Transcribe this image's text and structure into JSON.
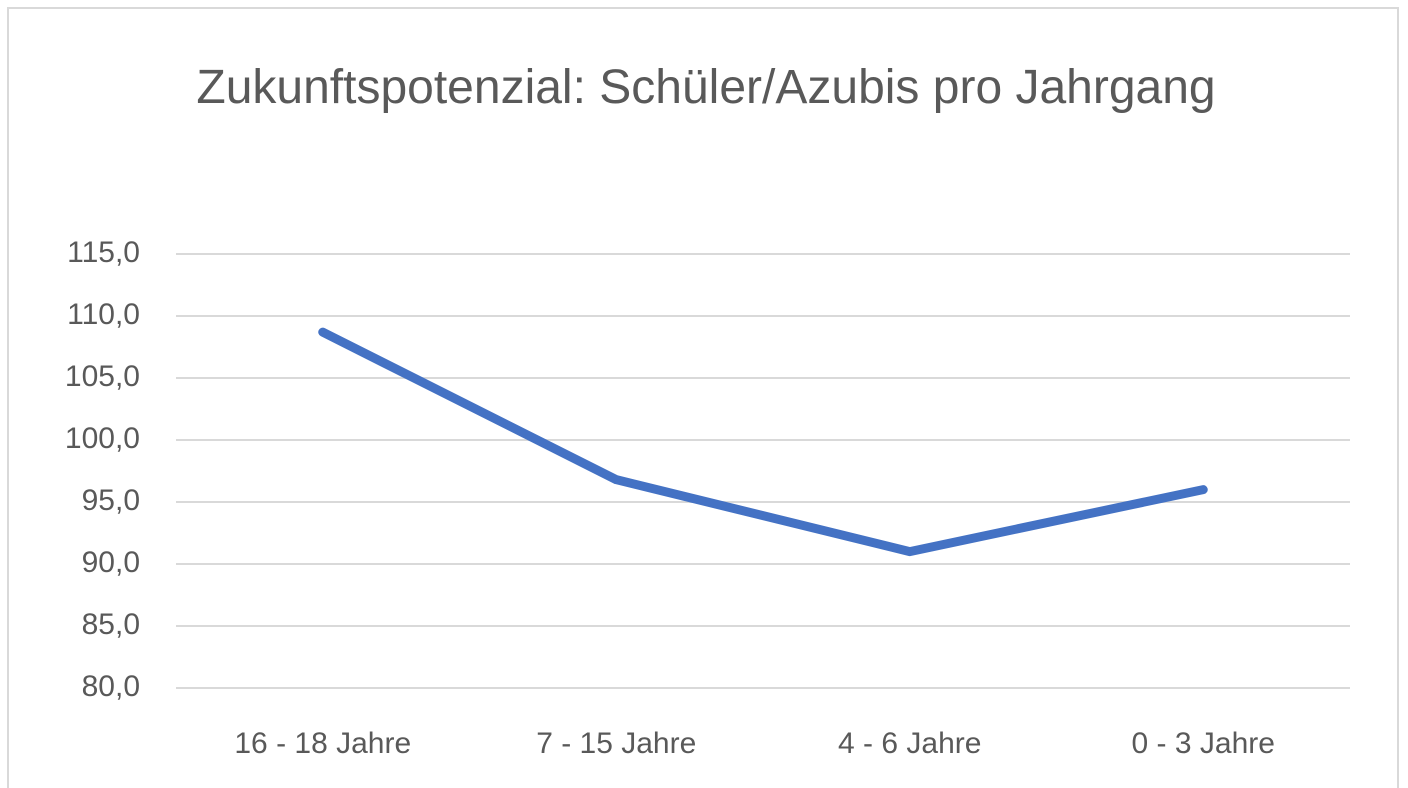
{
  "chart_data": {
    "type": "line",
    "title": "Zukunftspotenzial: Schüler/Azubis pro Jahrgang",
    "categories": [
      "16 - 18 Jahre",
      "7 - 15 Jahre",
      "4 - 6 Jahre",
      "0 - 3 Jahre"
    ],
    "values": [
      108.7,
      96.8,
      91.0,
      96.0
    ],
    "color": "#4472c4",
    "ylim": [
      80,
      115
    ],
    "yticks": [
      {
        "value": 80,
        "label": "80,0"
      },
      {
        "value": 85,
        "label": "85,0"
      },
      {
        "value": 90,
        "label": "90,0"
      },
      {
        "value": 95,
        "label": "95,0"
      },
      {
        "value": 100,
        "label": "100,0"
      },
      {
        "value": 105,
        "label": "105,0"
      },
      {
        "value": 110,
        "label": "110,0"
      },
      {
        "value": 115,
        "label": "115,0"
      }
    ],
    "grid": true
  }
}
